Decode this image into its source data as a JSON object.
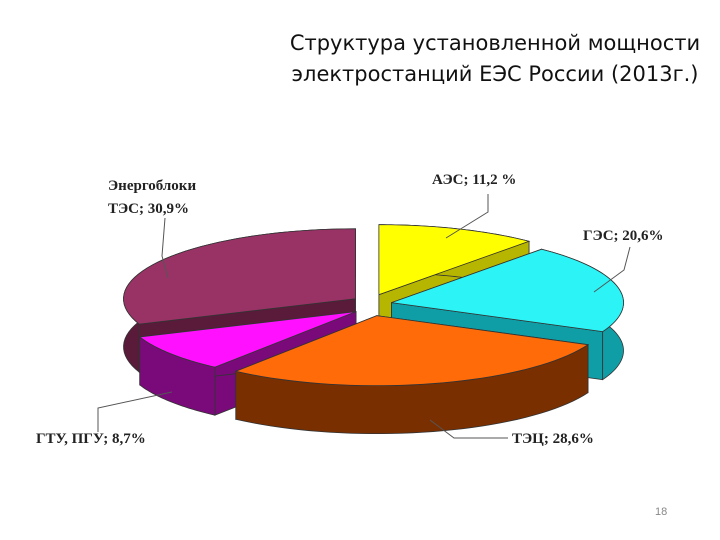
{
  "slide": {
    "title_line1": "Структура установленной мощности",
    "title_line2": "электростанций ЕЭС России (2013г.)",
    "page_number": "18"
  },
  "chart_data": {
    "type": "pie",
    "title": "Структура установленной мощности электростанций ЕЭС России (2013г.)",
    "style": "3d-exploded",
    "slices": [
      {
        "label": "АЭС; 11,2 %",
        "name": "АЭС",
        "value": 11.2,
        "color": "#ffff00",
        "side": "#b6b600",
        "exploded": true
      },
      {
        "label": "ГЭС; 20,6%",
        "name": "ГЭС",
        "value": 20.6,
        "color": "#2cf3f5",
        "side": "#0f9ea6",
        "exploded": true
      },
      {
        "label": "ТЭЦ; 28,6%",
        "name": "ТЭЦ",
        "value": 28.6,
        "color": "#ff6b08",
        "side": "#7a2f00",
        "exploded": true
      },
      {
        "label": "ГТУ, ПГУ; 8,7%",
        "name": "ГТУ, ПГУ",
        "value": 8.7,
        "color": "#ff11ff",
        "side": "#7a0a7a",
        "exploded": true
      },
      {
        "label": "Энергоблоки ТЭС; 30,9%",
        "name": "Энергоблоки ТЭС",
        "value": 30.9,
        "color": "#993366",
        "side": "#5a1a3a",
        "exploded": true
      }
    ]
  }
}
